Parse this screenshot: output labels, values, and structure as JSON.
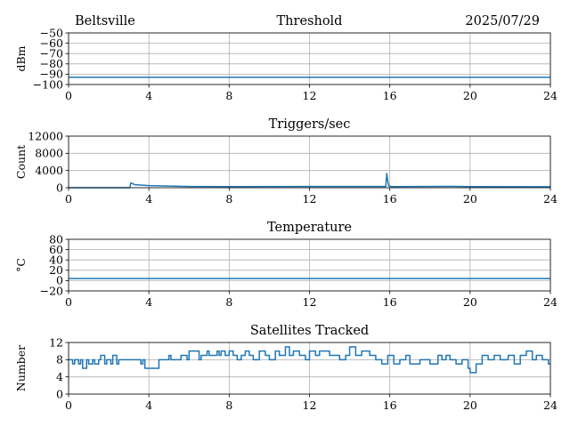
{
  "header": {
    "left": "Beltsville",
    "right": "2025/07/29"
  },
  "chart_data": [
    {
      "type": "line",
      "title": "Threshold",
      "ylabel": "dBm",
      "xlim": [
        0,
        24
      ],
      "ylim": [
        -100,
        -50
      ],
      "x_ticks": [
        0,
        4,
        8,
        12,
        16,
        20,
        24
      ],
      "y_ticks": [
        -100,
        -90,
        -80,
        -70,
        -60,
        -50
      ],
      "y_tick_labels": [
        "−100",
        "−90",
        "−80",
        "−70",
        "−60",
        "−50"
      ],
      "grid": true,
      "series": [
        {
          "x": [
            0,
            24
          ],
          "y": [
            -93,
            -93
          ]
        }
      ]
    },
    {
      "type": "line",
      "title": "Triggers/sec",
      "ylabel": "Count",
      "xlim": [
        0,
        24
      ],
      "ylim": [
        0,
        12000
      ],
      "x_ticks": [
        0,
        4,
        8,
        12,
        16,
        20,
        24
      ],
      "y_ticks": [
        0,
        4000,
        8000,
        12000
      ],
      "y_tick_labels": [
        "0",
        "4000",
        "8000",
        "12000"
      ],
      "grid": true,
      "series": [
        {
          "x": [
            0,
            3.05,
            3.1,
            3.3,
            4,
            5,
            6,
            8,
            12,
            15.8,
            15.85,
            15.9,
            15.95,
            16.1,
            19,
            20,
            24
          ],
          "y": [
            0,
            0,
            1100,
            700,
            500,
            380,
            280,
            250,
            280,
            280,
            3300,
            1500,
            400,
            250,
            320,
            270,
            230
          ]
        }
      ]
    },
    {
      "type": "line",
      "title": "Temperature",
      "ylabel": "°C",
      "xlim": [
        0,
        24
      ],
      "ylim": [
        -20,
        80
      ],
      "x_ticks": [
        0,
        4,
        8,
        12,
        16,
        20,
        24
      ],
      "y_ticks": [
        -20,
        0,
        20,
        40,
        60,
        80
      ],
      "y_tick_labels": [
        "−20",
        "0",
        "20",
        "40",
        "60",
        "80"
      ],
      "grid": true,
      "series": [
        {
          "x": [
            0,
            24
          ],
          "y": [
            4,
            4
          ]
        }
      ]
    },
    {
      "type": "line",
      "title": "Satellites Tracked",
      "ylabel": "Number",
      "xlim": [
        0,
        24
      ],
      "ylim": [
        0,
        12
      ],
      "x_ticks": [
        0,
        4,
        8,
        12,
        16,
        20,
        24
      ],
      "y_ticks": [
        0,
        4,
        8,
        12
      ],
      "y_tick_labels": [
        "0",
        "4",
        "8",
        "12"
      ],
      "grid": true,
      "step": true,
      "series": [
        {
          "x": [
            0,
            0.2,
            0.3,
            0.5,
            0.6,
            0.7,
            0.9,
            1.0,
            1.2,
            1.3,
            1.5,
            1.6,
            1.8,
            1.9,
            2.1,
            2.2,
            2.4,
            2.5,
            3.5,
            3.6,
            3.7,
            3.8,
            4.0,
            4.5,
            4.6,
            5.0,
            5.1,
            5.5,
            5.6,
            5.9,
            6.0,
            6.5,
            6.6,
            6.9,
            7.0,
            7.4,
            7.5,
            7.6,
            7.8,
            8.0,
            8.2,
            8.4,
            8.6,
            8.8,
            9.0,
            9.2,
            9.5,
            9.8,
            10.0,
            10.3,
            10.5,
            10.8,
            11.0,
            11.2,
            11.5,
            11.8,
            12.0,
            12.3,
            12.5,
            13.0,
            13.5,
            13.8,
            14.0,
            14.3,
            14.6,
            15.0,
            15.3,
            15.6,
            15.9,
            16.2,
            16.5,
            16.8,
            17.0,
            17.5,
            18.0,
            18.4,
            18.6,
            18.8,
            19.0,
            19.3,
            19.6,
            19.9,
            20.0,
            20.3,
            20.6,
            20.9,
            21.2,
            21.5,
            21.9,
            22.2,
            22.5,
            22.8,
            23.1,
            23.3,
            23.6,
            23.9,
            24.0
          ],
          "y": [
            8,
            7,
            8,
            7,
            8,
            6,
            8,
            7,
            8,
            7,
            8,
            9,
            7,
            8,
            7,
            9,
            7,
            8,
            8,
            7,
            8,
            6,
            6,
            8,
            8,
            9,
            8,
            8,
            9,
            8,
            10,
            8,
            9,
            10,
            9,
            10,
            9,
            10,
            9,
            10,
            9,
            8,
            9,
            10,
            9,
            8,
            10,
            9,
            8,
            10,
            9,
            11,
            9,
            10,
            9,
            8,
            10,
            9,
            10,
            9,
            8,
            9,
            11,
            9,
            10,
            9,
            8,
            7,
            9,
            7,
            8,
            9,
            7,
            8,
            7,
            9,
            8,
            9,
            8,
            7,
            8,
            6,
            5,
            7,
            9,
            8,
            9,
            8,
            9,
            7,
            9,
            10,
            8,
            9,
            8,
            7,
            7
          ]
        }
      ]
    }
  ]
}
